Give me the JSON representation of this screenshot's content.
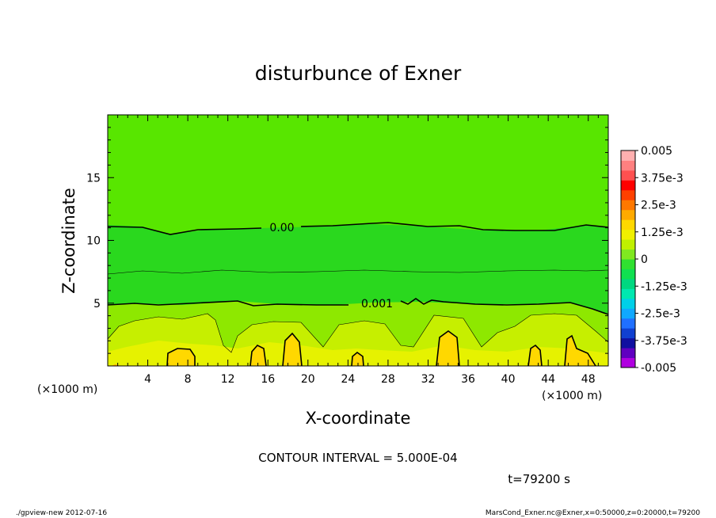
{
  "chart_data": {
    "type": "heatmap",
    "title": "disturbunce of Exner",
    "xlabel": "X-coordinate",
    "ylabel": "Z-coordinate",
    "x_unit": "(×1000 m)",
    "x_unit_right": "(×1000 m)",
    "xlim": [
      0,
      50
    ],
    "ylim": [
      0,
      20
    ],
    "x_ticks": [
      "4",
      "8",
      "12",
      "16",
      "20",
      "24",
      "28",
      "32",
      "36",
      "40",
      "44",
      "48"
    ],
    "y_ticks": [
      "5",
      "10",
      "15"
    ],
    "contour_labels": [
      {
        "text": "0.00",
        "x": 17,
        "z": 11.1
      },
      {
        "text": "0.001",
        "x": 26.5,
        "z": 5.0
      }
    ],
    "colorbar": {
      "labels": [
        "0.005",
        "3.75e-3",
        "2.5e-3",
        "1.25e-3",
        "0",
        "-1.25e-3",
        "-2.5e-3",
        "-3.75e-3",
        "-0.005"
      ],
      "colors": [
        "#b000e0",
        "#6000c0",
        "#1010a0",
        "#1040d0",
        "#2070ff",
        "#10a8ff",
        "#00d0e8",
        "#00e8b0",
        "#00d880",
        "#10e050",
        "#30e030",
        "#80e820",
        "#c0f000",
        "#f0f000",
        "#ffd800",
        "#ffaa00",
        "#ff7800",
        "#ff4000",
        "#ff0000",
        "#ff5050",
        "#ff8080",
        "#ffb0b0"
      ]
    },
    "contour_interval": "CONTOUR INTERVAL = 5.000E-04",
    "time": "t=79200 s"
  },
  "footer": {
    "left": "./gpview-new  2012-07-16",
    "right": "MarsCond_Exner.nc@Exner,x=0:50000,z=0:20000,t=79200"
  }
}
